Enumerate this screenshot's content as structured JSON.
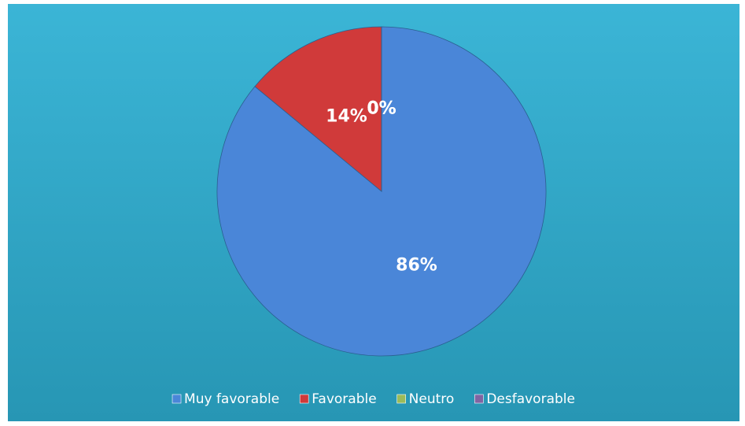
{
  "chart_data": {
    "type": "pie",
    "categories": [
      "Muy favorable",
      "Favorable",
      "Neutro",
      "Desfavorable"
    ],
    "values": [
      86,
      14,
      0,
      0
    ],
    "value_labels": [
      "86%",
      "14%",
      "0%",
      "0%"
    ],
    "colors": [
      "#4a86d8",
      "#d03a3a",
      "#9bbb59",
      "#8064a2"
    ],
    "legend": "bottom"
  }
}
